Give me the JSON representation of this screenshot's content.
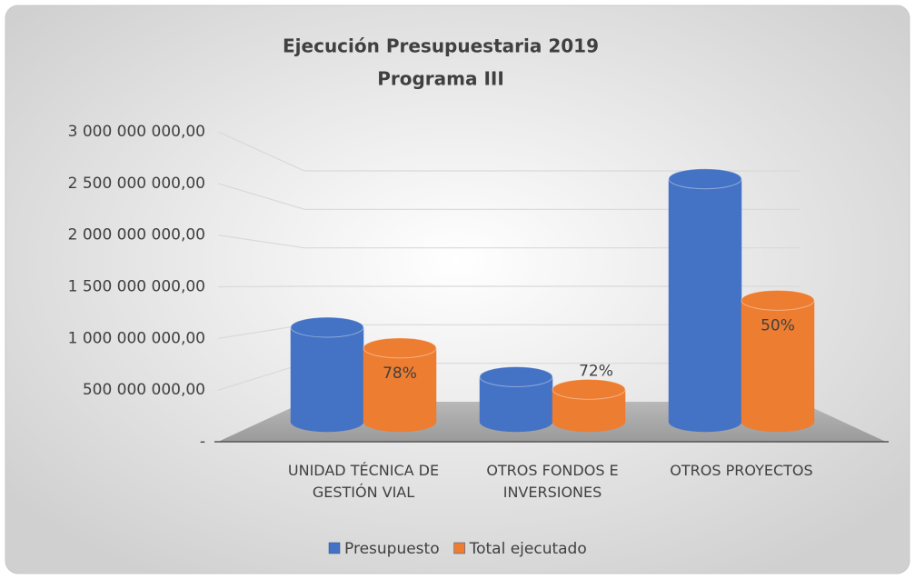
{
  "chart_data": {
    "type": "bar3d",
    "title": [
      "Ejecución Presupuestaria 2019",
      "Programa III"
    ],
    "categories": [
      "UNIDAD TÉCNICA DE GESTIÓN VIAL",
      "OTROS FONDOS E INVERSIONES",
      "OTROS PROYECTOS"
    ],
    "series": [
      {
        "name": "Presupuesto",
        "color": "#4472c4",
        "values": [
          1050000000,
          500000000,
          2700000000
        ]
      },
      {
        "name": "Total ejecutado",
        "color": "#ed7d31",
        "values": [
          820000000,
          360000000,
          1350000000
        ],
        "data_labels": [
          "78%",
          "72%",
          "50%"
        ]
      }
    ],
    "ylim": [
      0,
      3000000000
    ],
    "yticks": [
      {
        "value": 0,
        "label": "-"
      },
      {
        "value": 500000000,
        "label": "500 000 000,00"
      },
      {
        "value": 1000000000,
        "label": "1 000 000 000,00"
      },
      {
        "value": 1500000000,
        "label": "1 500 000 000,00"
      },
      {
        "value": 2000000000,
        "label": "2 000 000 000,00"
      },
      {
        "value": 2500000000,
        "label": "2 500 000 000,00"
      },
      {
        "value": 3000000000,
        "label": "3 000 000 000,00"
      }
    ],
    "grid": true,
    "legend": "bottom"
  }
}
